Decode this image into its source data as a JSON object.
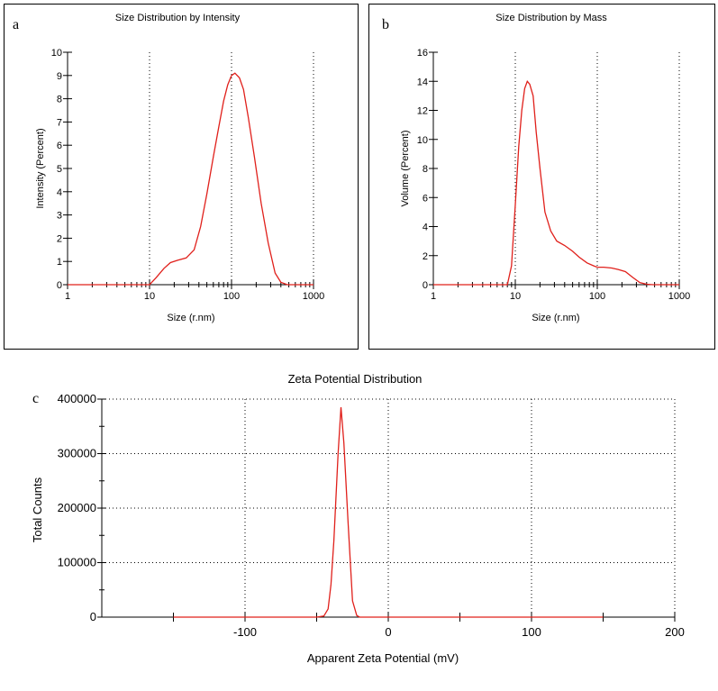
{
  "colors": {
    "series": "#e0201b",
    "axis": "#000000"
  },
  "chart_data": [
    {
      "id": "a",
      "panel_label": "a",
      "type": "line",
      "title": "Size Distribution by Intensity",
      "xlabel": "Size (r.nm)",
      "ylabel": "Intensity (Percent)",
      "xscale": "log",
      "xlim": [
        1,
        1000
      ],
      "ylim": [
        0,
        10
      ],
      "xticks": [
        1,
        10,
        100,
        1000
      ],
      "xtick_labels": [
        "1",
        "10",
        "100",
        "1000"
      ],
      "yticks": [
        0,
        1,
        2,
        3,
        4,
        5,
        6,
        7,
        8,
        9,
        10
      ],
      "ytick_labels": [
        "0",
        "1",
        "2",
        "3",
        "4",
        "5",
        "6",
        "7",
        "8",
        "9",
        "10"
      ],
      "vgrid": [
        10,
        100,
        1000
      ],
      "hgrid": [],
      "series": [
        {
          "name": "Intensity",
          "x": [
            1,
            5,
            10,
            12,
            15,
            18,
            22,
            28,
            35,
            42,
            50,
            60,
            70,
            80,
            90,
            100,
            110,
            125,
            140,
            160,
            190,
            230,
            280,
            340,
            400,
            480,
            550,
            700,
            1000
          ],
          "y": [
            0,
            0,
            0,
            0.3,
            0.7,
            0.95,
            1.05,
            1.15,
            1.5,
            2.5,
            3.9,
            5.5,
            6.8,
            7.9,
            8.6,
            9.0,
            9.1,
            8.9,
            8.4,
            7.2,
            5.5,
            3.5,
            1.8,
            0.5,
            0.1,
            0,
            0,
            0,
            0
          ]
        }
      ]
    },
    {
      "id": "b",
      "panel_label": "b",
      "type": "line",
      "title": "Size Distribution by Mass",
      "xlabel": "Size (r.nm)",
      "ylabel": "Volume (Percent)",
      "xscale": "log",
      "xlim": [
        1,
        1000
      ],
      "ylim": [
        0,
        16
      ],
      "xticks": [
        1,
        10,
        100,
        1000
      ],
      "xtick_labels": [
        "1",
        "10",
        "100",
        "1000"
      ],
      "yticks": [
        0,
        2,
        4,
        6,
        8,
        10,
        12,
        14,
        16
      ],
      "ytick_labels": [
        "0",
        "2",
        "4",
        "6",
        "8",
        "10",
        "12",
        "14",
        "16"
      ],
      "vgrid": [
        10,
        100,
        1000
      ],
      "hgrid": [],
      "series": [
        {
          "name": "Volume",
          "x": [
            1,
            5,
            8,
            9,
            10,
            11,
            12,
            13,
            14,
            15,
            16.5,
            18,
            20,
            23,
            27,
            32,
            40,
            50,
            60,
            75,
            90,
            100,
            120,
            150,
            180,
            220,
            270,
            330,
            400,
            480,
            550,
            700,
            1000
          ],
          "y": [
            0,
            0,
            0,
            1.3,
            5.5,
            9.5,
            12.0,
            13.5,
            14.0,
            13.8,
            13.0,
            10.5,
            8.0,
            5.0,
            3.7,
            3.0,
            2.7,
            2.3,
            1.9,
            1.5,
            1.3,
            1.2,
            1.2,
            1.15,
            1.05,
            0.9,
            0.5,
            0.15,
            0.03,
            0,
            0,
            0,
            0
          ]
        }
      ]
    },
    {
      "id": "c",
      "panel_label": "c",
      "type": "line",
      "title": "Zeta Potential Distribution",
      "xlabel": "Apparent Zeta Potential (mV)",
      "ylabel": "Total Counts",
      "xscale": "linear",
      "xlim": [
        -200,
        200
      ],
      "ylim": [
        0,
        400000
      ],
      "xticks": [
        -100,
        0,
        100,
        200
      ],
      "xtick_labels": [
        "-100",
        "0",
        "100",
        "200"
      ],
      "xminor": [
        -150,
        -50,
        50,
        150
      ],
      "yticks": [
        0,
        100000,
        200000,
        300000,
        400000
      ],
      "ytick_labels": [
        "0",
        "100000",
        "200000",
        "300000",
        "400000"
      ],
      "yminor": [
        50000,
        150000,
        250000,
        350000
      ],
      "vgrid": [
        -100,
        0,
        100,
        200
      ],
      "hgrid": [
        100000,
        200000,
        300000,
        400000
      ],
      "series": [
        {
          "name": "Total Counts",
          "x": [
            -150,
            -50,
            -45,
            -42,
            -40,
            -38,
            -35,
            -33,
            -31,
            -28,
            -25,
            -22,
            -20,
            -18,
            150
          ],
          "y": [
            0,
            0,
            2000,
            15000,
            60000,
            140000,
            300000,
            385000,
            320000,
            170000,
            30000,
            3000,
            0,
            0,
            0
          ]
        }
      ]
    }
  ]
}
